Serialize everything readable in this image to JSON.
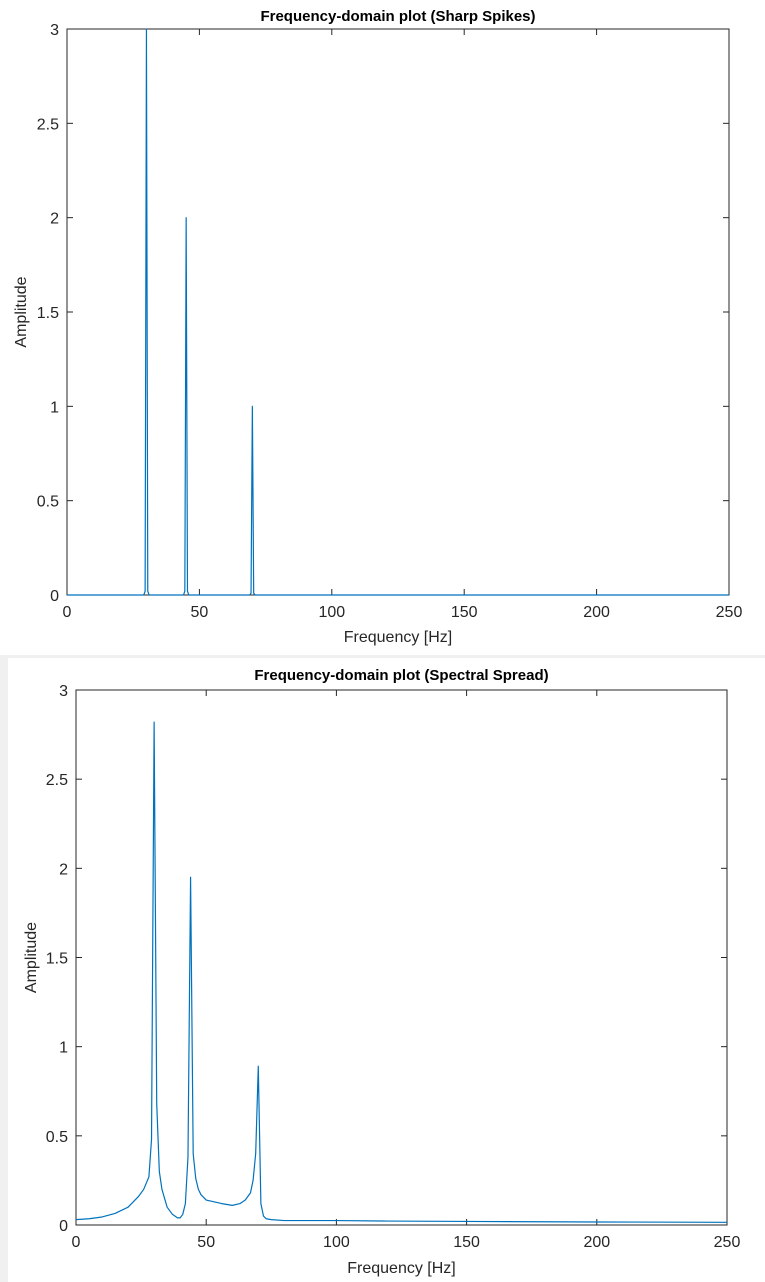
{
  "colors": {
    "line": "#0072bd",
    "axes": "#262626",
    "background": "#ffffff",
    "page": "#f0f0f0"
  },
  "chart_data": [
    {
      "type": "line",
      "title": "Frequency-domain plot (Sharp Spikes)",
      "xlabel": "Frequency [Hz]",
      "ylabel": "Amplitude",
      "xlim": [
        0,
        250
      ],
      "ylim": [
        0,
        3
      ],
      "xticks": [
        "0",
        "50",
        "100",
        "150",
        "200",
        "250"
      ],
      "yticks": [
        "0",
        "0.5",
        "1",
        "1.5",
        "2",
        "2.5",
        "3"
      ],
      "grid": false,
      "series": [
        {
          "x": [
            0,
            29,
            29.5,
            30,
            30.5,
            31,
            44,
            44.5,
            45,
            45.5,
            46,
            69,
            69.5,
            70,
            70.5,
            71,
            250
          ],
          "y": [
            0,
            0,
            0.02,
            3,
            0.02,
            0,
            0,
            0.02,
            2,
            0.02,
            0,
            0,
            0.01,
            1,
            0.01,
            0,
            0
          ]
        }
      ]
    },
    {
      "type": "line",
      "title": "Frequency-domain plot (Spectral Spread)",
      "xlabel": "Frequency [Hz]",
      "ylabel": "Amplitude",
      "xlim": [
        0,
        250
      ],
      "ylim": [
        0,
        3
      ],
      "xticks": [
        "0",
        "50",
        "100",
        "150",
        "200",
        "250"
      ],
      "yticks": [
        "0",
        "0.5",
        "1",
        "1.5",
        "2",
        "2.5",
        "3"
      ],
      "grid": false,
      "series": [
        {
          "x": [
            0,
            5,
            10,
            15,
            20,
            24,
            26,
            28,
            29,
            30,
            31,
            32,
            33,
            35,
            37,
            39,
            40,
            41,
            42,
            43,
            44,
            45,
            46,
            47,
            48,
            50,
            53,
            56,
            60,
            63,
            65,
            67,
            68,
            69,
            70,
            71,
            72,
            73,
            75,
            80,
            90,
            100,
            120,
            150,
            200,
            250
          ],
          "y": [
            0.03,
            0.035,
            0.045,
            0.065,
            0.1,
            0.16,
            0.2,
            0.27,
            0.48,
            2.82,
            0.68,
            0.3,
            0.2,
            0.1,
            0.06,
            0.04,
            0.04,
            0.06,
            0.12,
            0.38,
            1.95,
            0.4,
            0.26,
            0.2,
            0.17,
            0.14,
            0.13,
            0.12,
            0.11,
            0.12,
            0.14,
            0.18,
            0.25,
            0.4,
            0.89,
            0.12,
            0.05,
            0.035,
            0.03,
            0.025,
            0.025,
            0.025,
            0.022,
            0.02,
            0.017,
            0.015
          ]
        }
      ]
    }
  ]
}
